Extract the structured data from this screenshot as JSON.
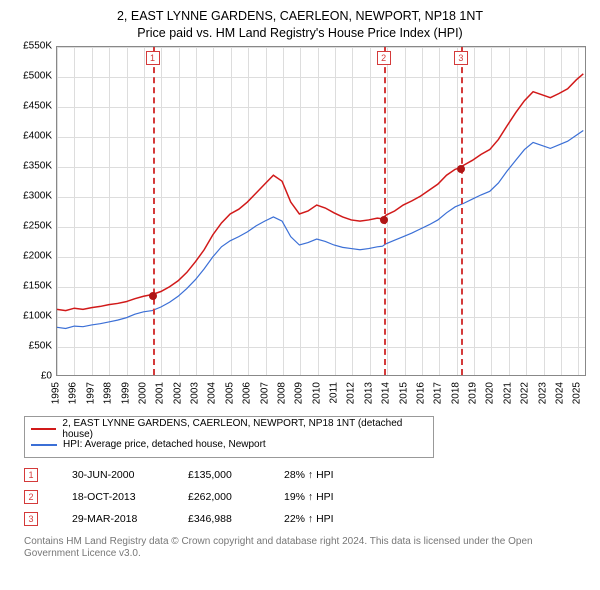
{
  "title": {
    "line1": "2, EAST LYNNE GARDENS, CAERLEON, NEWPORT, NP18 1NT",
    "line2": "Price paid vs. HM Land Registry's House Price Index (HPI)"
  },
  "chart": {
    "type": "line",
    "background_color": "#ffffff",
    "grid_color": "#dddddd",
    "axis_color": "#888888",
    "label_fontsize": 10,
    "title_fontsize": 12.5,
    "x": {
      "min": 1995,
      "max": 2025.5,
      "tick_step": 1,
      "ticks": [
        1995,
        1996,
        1997,
        1998,
        1999,
        2000,
        2001,
        2002,
        2003,
        2004,
        2005,
        2006,
        2007,
        2008,
        2009,
        2010,
        2011,
        2012,
        2013,
        2014,
        2015,
        2016,
        2017,
        2018,
        2019,
        2020,
        2021,
        2022,
        2023,
        2024,
        2025
      ]
    },
    "y": {
      "min": 0,
      "max": 550000,
      "tick_step": 50000,
      "tick_labels": [
        "£0",
        "£50K",
        "£100K",
        "£150K",
        "£200K",
        "£250K",
        "£300K",
        "£350K",
        "£400K",
        "£450K",
        "£500K",
        "£550K"
      ]
    },
    "series": [
      {
        "name": "property",
        "label": "2, EAST LYNNE GARDENS, CAERLEON, NEWPORT, NP18 1NT (detached house)",
        "color": "#d11919",
        "line_width": 1.5,
        "points": [
          [
            1995.0,
            110000
          ],
          [
            1995.5,
            108000
          ],
          [
            1996.0,
            112000
          ],
          [
            1996.5,
            110000
          ],
          [
            1997.0,
            113000
          ],
          [
            1997.5,
            115000
          ],
          [
            1998.0,
            118000
          ],
          [
            1998.5,
            120000
          ],
          [
            1999.0,
            123000
          ],
          [
            1999.5,
            128000
          ],
          [
            2000.0,
            132000
          ],
          [
            2000.5,
            135000
          ],
          [
            2001.0,
            140000
          ],
          [
            2001.5,
            148000
          ],
          [
            2002.0,
            158000
          ],
          [
            2002.5,
            172000
          ],
          [
            2003.0,
            190000
          ],
          [
            2003.5,
            210000
          ],
          [
            2004.0,
            235000
          ],
          [
            2004.5,
            255000
          ],
          [
            2005.0,
            270000
          ],
          [
            2005.5,
            278000
          ],
          [
            2006.0,
            290000
          ],
          [
            2006.5,
            305000
          ],
          [
            2007.0,
            320000
          ],
          [
            2007.5,
            335000
          ],
          [
            2008.0,
            325000
          ],
          [
            2008.5,
            290000
          ],
          [
            2009.0,
            270000
          ],
          [
            2009.5,
            275000
          ],
          [
            2010.0,
            285000
          ],
          [
            2010.5,
            280000
          ],
          [
            2011.0,
            272000
          ],
          [
            2011.5,
            265000
          ],
          [
            2012.0,
            260000
          ],
          [
            2012.5,
            258000
          ],
          [
            2013.0,
            260000
          ],
          [
            2013.5,
            263000
          ],
          [
            2013.8,
            262000
          ],
          [
            2014.0,
            268000
          ],
          [
            2014.5,
            275000
          ],
          [
            2015.0,
            285000
          ],
          [
            2015.5,
            292000
          ],
          [
            2016.0,
            300000
          ],
          [
            2016.5,
            310000
          ],
          [
            2017.0,
            320000
          ],
          [
            2017.5,
            335000
          ],
          [
            2018.0,
            345000
          ],
          [
            2018.24,
            346988
          ],
          [
            2018.5,
            352000
          ],
          [
            2019.0,
            360000
          ],
          [
            2019.5,
            370000
          ],
          [
            2020.0,
            378000
          ],
          [
            2020.5,
            395000
          ],
          [
            2021.0,
            418000
          ],
          [
            2021.5,
            440000
          ],
          [
            2022.0,
            460000
          ],
          [
            2022.5,
            475000
          ],
          [
            2023.0,
            470000
          ],
          [
            2023.5,
            465000
          ],
          [
            2024.0,
            472000
          ],
          [
            2024.5,
            480000
          ],
          [
            2025.0,
            495000
          ],
          [
            2025.4,
            505000
          ]
        ]
      },
      {
        "name": "hpi",
        "label": "HPI: Average price, detached house, Newport",
        "color": "#3b6fd6",
        "line_width": 1.2,
        "points": [
          [
            1995.0,
            80000
          ],
          [
            1995.5,
            78000
          ],
          [
            1996.0,
            82000
          ],
          [
            1996.5,
            81000
          ],
          [
            1997.0,
            84000
          ],
          [
            1997.5,
            86000
          ],
          [
            1998.0,
            89000
          ],
          [
            1998.5,
            92000
          ],
          [
            1999.0,
            96000
          ],
          [
            1999.5,
            102000
          ],
          [
            2000.0,
            106000
          ],
          [
            2000.5,
            108000
          ],
          [
            2001.0,
            114000
          ],
          [
            2001.5,
            122000
          ],
          [
            2002.0,
            132000
          ],
          [
            2002.5,
            145000
          ],
          [
            2003.0,
            160000
          ],
          [
            2003.5,
            178000
          ],
          [
            2004.0,
            198000
          ],
          [
            2004.5,
            215000
          ],
          [
            2005.0,
            225000
          ],
          [
            2005.5,
            232000
          ],
          [
            2006.0,
            240000
          ],
          [
            2006.5,
            250000
          ],
          [
            2007.0,
            258000
          ],
          [
            2007.5,
            265000
          ],
          [
            2008.0,
            258000
          ],
          [
            2008.5,
            232000
          ],
          [
            2009.0,
            218000
          ],
          [
            2009.5,
            222000
          ],
          [
            2010.0,
            228000
          ],
          [
            2010.5,
            224000
          ],
          [
            2011.0,
            218000
          ],
          [
            2011.5,
            214000
          ],
          [
            2012.0,
            212000
          ],
          [
            2012.5,
            210000
          ],
          [
            2013.0,
            212000
          ],
          [
            2013.5,
            215000
          ],
          [
            2013.8,
            216000
          ],
          [
            2014.0,
            220000
          ],
          [
            2014.5,
            226000
          ],
          [
            2015.0,
            232000
          ],
          [
            2015.5,
            238000
          ],
          [
            2016.0,
            245000
          ],
          [
            2016.5,
            252000
          ],
          [
            2017.0,
            260000
          ],
          [
            2017.5,
            272000
          ],
          [
            2018.0,
            282000
          ],
          [
            2018.5,
            288000
          ],
          [
            2019.0,
            295000
          ],
          [
            2019.5,
            302000
          ],
          [
            2020.0,
            308000
          ],
          [
            2020.5,
            322000
          ],
          [
            2021.0,
            342000
          ],
          [
            2021.5,
            360000
          ],
          [
            2022.0,
            378000
          ],
          [
            2022.5,
            390000
          ],
          [
            2023.0,
            385000
          ],
          [
            2023.5,
            380000
          ],
          [
            2024.0,
            386000
          ],
          [
            2024.5,
            392000
          ],
          [
            2025.0,
            402000
          ],
          [
            2025.4,
            410000
          ]
        ]
      }
    ],
    "sale_events": [
      {
        "n": "1",
        "year": 2000.5,
        "value": 135000,
        "date": "30-JUN-2000",
        "price": "£135,000",
        "delta": "28% ↑ HPI"
      },
      {
        "n": "2",
        "year": 2013.8,
        "value": 262000,
        "date": "18-OCT-2013",
        "price": "£262,000",
        "delta": "19% ↑ HPI"
      },
      {
        "n": "3",
        "year": 2018.24,
        "value": 346988,
        "date": "29-MAR-2018",
        "price": "£346,988",
        "delta": "22% ↑ HPI"
      }
    ],
    "event_marker_color": "#d43a3a",
    "sale_dot_color": "#b01515"
  },
  "legend": {
    "items": [
      {
        "color": "#d11919",
        "label": "2, EAST LYNNE GARDENS, CAERLEON, NEWPORT, NP18 1NT (detached house)"
      },
      {
        "color": "#3b6fd6",
        "label": "HPI: Average price, detached house, Newport"
      }
    ]
  },
  "footnote": "Contains HM Land Registry data © Crown copyright and database right 2024. This data is licensed under the Open Government Licence v3.0."
}
